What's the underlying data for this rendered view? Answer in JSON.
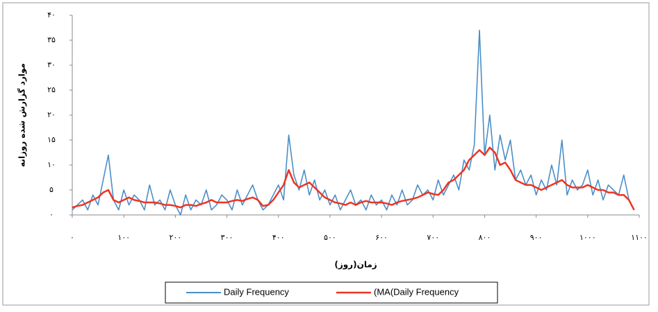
{
  "chart_data": {
    "type": "line",
    "y_label": "موارد گزارش شده روزانه",
    "x_label": "زمان(روز)",
    "x": [
      0,
      10,
      20,
      30,
      40,
      50,
      60,
      70,
      80,
      90,
      100,
      110,
      120,
      130,
      140,
      150,
      160,
      170,
      180,
      190,
      200,
      210,
      220,
      230,
      240,
      250,
      260,
      270,
      280,
      290,
      300,
      310,
      320,
      330,
      340,
      350,
      360,
      370,
      380,
      390,
      400,
      410,
      420,
      430,
      440,
      450,
      460,
      470,
      480,
      490,
      500,
      510,
      520,
      530,
      540,
      550,
      560,
      570,
      580,
      590,
      600,
      610,
      620,
      630,
      640,
      650,
      660,
      670,
      680,
      690,
      700,
      710,
      720,
      730,
      740,
      750,
      760,
      770,
      780,
      790,
      800,
      810,
      820,
      830,
      840,
      850,
      860,
      870,
      880,
      890,
      900,
      910,
      920,
      930,
      940,
      950,
      960,
      970,
      980,
      990,
      1000,
      1010,
      1020,
      1030,
      1040,
      1050,
      1060,
      1070,
      1080,
      1090
    ],
    "series": [
      {
        "name": "Daily Frequency",
        "color": "#4a8ec6",
        "values": [
          1,
          2,
          3,
          1,
          4,
          2,
          7,
          12,
          3,
          1,
          5,
          2,
          4,
          3,
          1,
          6,
          2,
          3,
          1,
          5,
          2,
          0,
          4,
          1,
          3,
          2,
          5,
          1,
          2,
          4,
          3,
          1,
          5,
          2,
          4,
          6,
          3,
          1,
          2,
          4,
          6,
          3,
          16,
          8,
          5,
          9,
          4,
          7,
          3,
          5,
          2,
          4,
          1,
          3,
          5,
          2,
          3,
          1,
          4,
          2,
          3,
          1,
          4,
          2,
          5,
          2,
          3,
          6,
          4,
          5,
          3,
          7,
          4,
          6,
          8,
          5,
          11,
          9,
          14,
          37,
          12,
          20,
          9,
          16,
          11,
          15,
          7,
          9,
          6,
          8,
          4,
          7,
          5,
          10,
          6,
          15,
          4,
          7,
          5,
          6,
          9,
          4,
          7,
          3,
          6,
          5,
          4,
          8,
          3,
          1
        ]
      },
      {
        "name": "(MA(Daily Frequency",
        "color": "#ee3322",
        "values": [
          1.5,
          1.8,
          2,
          2.5,
          3,
          3.5,
          4.5,
          5,
          3,
          2.5,
          3,
          3.5,
          3,
          2.8,
          2.5,
          2.5,
          2.5,
          2.3,
          2,
          2,
          1.8,
          1.5,
          2,
          2,
          1.8,
          2.2,
          2.5,
          3,
          2.5,
          2.5,
          2.5,
          2.8,
          3,
          2.8,
          3.2,
          3.5,
          3,
          1.8,
          2,
          3,
          4.5,
          6,
          9,
          6.5,
          5.5,
          6,
          6.5,
          5.5,
          4.5,
          3.5,
          3,
          2.5,
          2.3,
          2,
          2.5,
          2,
          2.5,
          2.8,
          2.5,
          2.5,
          2.5,
          2.3,
          2,
          2.5,
          2.8,
          3,
          3.2,
          3.5,
          4,
          4.5,
          4.2,
          4,
          5,
          6.5,
          7,
          8,
          9,
          11,
          12,
          13,
          12,
          13.5,
          12.5,
          10,
          10.5,
          9,
          7,
          6.5,
          6,
          6,
          5.5,
          5,
          5.5,
          6,
          6.5,
          7,
          6,
          5.5,
          5.5,
          5.5,
          6,
          5.5,
          5,
          5,
          4.5,
          4.5,
          4,
          4,
          3,
          1
        ]
      }
    ],
    "xlim": [
      0,
      1100
    ],
    "xticks": [
      {
        "value": 0,
        "label": "۰"
      },
      {
        "value": 100,
        "label": "۱۰۰"
      },
      {
        "value": 200,
        "label": "۲۰۰"
      },
      {
        "value": 300,
        "label": "۳۰۰"
      },
      {
        "value": 400,
        "label": "۴۰۰"
      },
      {
        "value": 500,
        "label": "۵۰۰"
      },
      {
        "value": 600,
        "label": "۶۰۰"
      },
      {
        "value": 700,
        "label": "۷۰۰"
      },
      {
        "value": 800,
        "label": "۸۰۰"
      },
      {
        "value": 900,
        "label": "۹۰۰"
      },
      {
        "value": 1000,
        "label": "۱۰۰۰"
      },
      {
        "value": 1100,
        "label": "۱۱۰۰"
      }
    ],
    "ylim": [
      0,
      40
    ],
    "yticks": [
      {
        "value": 0,
        "label": "۰"
      },
      {
        "value": 5,
        "label": "۵"
      },
      {
        "value": 10,
        "label": "۱۰"
      },
      {
        "value": 15,
        "label": "۱۵"
      },
      {
        "value": 20,
        "label": "۲۰"
      },
      {
        "value": 25,
        "label": "۲۵"
      },
      {
        "value": 30,
        "label": "۳۰"
      },
      {
        "value": 35,
        "label": "۳۵"
      },
      {
        "value": 40,
        "label": "۴۰"
      }
    ],
    "grid": false
  }
}
